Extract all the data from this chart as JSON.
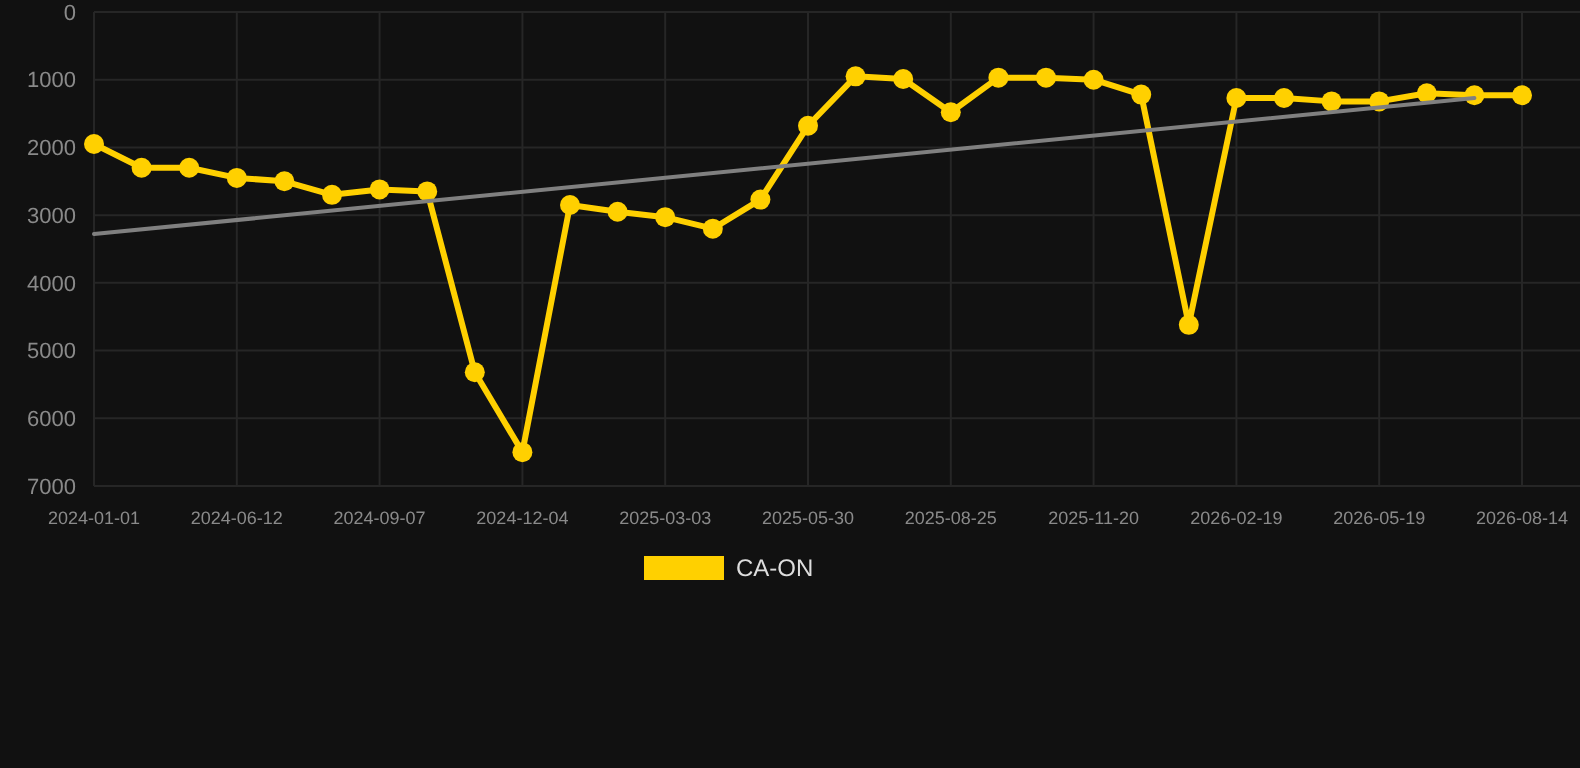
{
  "chart_data": {
    "type": "line",
    "categories": [
      "2024-01-01",
      null,
      null,
      "2024-06-12",
      null,
      null,
      "2024-09-07",
      null,
      null,
      "2024-12-04",
      null,
      null,
      "2025-03-03",
      null,
      null,
      "2025-05-30",
      null,
      null,
      "2025-08-25",
      null,
      null,
      "2025-11-20",
      null,
      null,
      "2026-02-19",
      null,
      null,
      "2026-05-19",
      null,
      null,
      "2026-08-14"
    ],
    "series": [
      {
        "name": "CA-ON",
        "color": "#ffd000",
        "marker": "circle",
        "values": [
          1950,
          2300,
          2300,
          2450,
          2500,
          2700,
          2620,
          2650,
          5320,
          6500,
          2850,
          2950,
          3030,
          3200,
          2770,
          1680,
          950,
          990,
          1480,
          970,
          970,
          1000,
          1220,
          4620,
          1270,
          1270,
          1320,
          1320,
          1200,
          1230,
          1230
        ]
      },
      {
        "color": "#808080",
        "marker": "none",
        "values": [
          3280,
          null,
          null,
          null,
          null,
          null,
          null,
          null,
          null,
          null,
          null,
          null,
          null,
          null,
          null,
          null,
          null,
          null,
          null,
          null,
          null,
          null,
          null,
          null,
          null,
          null,
          null,
          null,
          null,
          1270,
          null
        ]
      }
    ],
    "ylim": [
      7000,
      0
    ],
    "yticks": [
      0,
      1000,
      2000,
      3000,
      4000,
      5000,
      6000,
      7000
    ],
    "grid": true,
    "legend": "bottom"
  }
}
